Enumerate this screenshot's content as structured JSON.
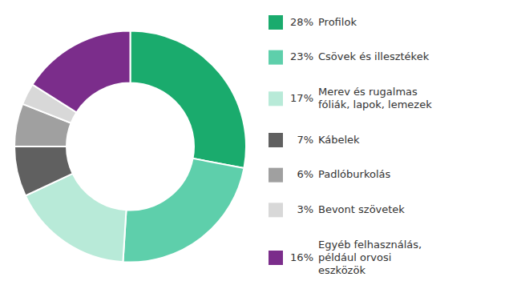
{
  "chart_data": {
    "type": "donut",
    "categories": [
      "Profilok",
      "Csövek és illesztékek",
      "Merev és rugalmas\nfóliák, lapok, lemezek",
      "Kábelek",
      "Padlóburkolás",
      "Bevont szövetek",
      "Egyéb felhasználás,\npéldául orvosi\neszközök"
    ],
    "values": [
      28,
      23,
      17,
      7,
      6,
      3,
      16
    ],
    "value_labels": [
      "28%",
      "23%",
      "17%",
      "7%",
      "6%",
      "3%",
      "16%"
    ],
    "colors": [
      "#1aab6d",
      "#5ecfab",
      "#b8ead8",
      "#606060",
      "#a0a0a0",
      "#d8d8d8",
      "#7b2d8b"
    ],
    "legend": "right"
  }
}
